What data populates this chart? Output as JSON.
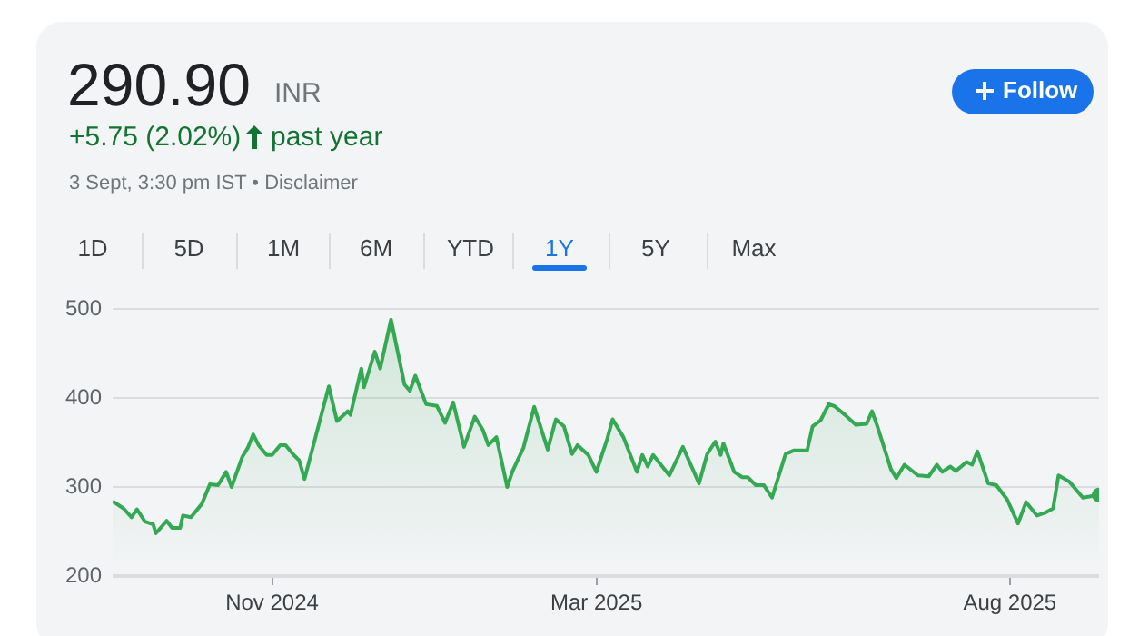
{
  "chart_data": {
    "type": "area",
    "title": "290.90",
    "annotations": [
      "INR",
      "+5.75 (2.02%)",
      "past year",
      "3 Sept, 3:30 pm IST • Disclaimer",
      "Follow",
      "1D",
      "5D",
      "1M",
      "6M",
      "YTD",
      "1Y",
      "5Y",
      "Max"
    ],
    "x": [
      "2024-09-03",
      "2024-09-07",
      "2024-09-10",
      "2024-09-12",
      "2024-09-15",
      "2024-09-18",
      "2024-09-19",
      "2024-09-23",
      "2024-09-25",
      "2024-09-28",
      "2024-09-29",
      "2024-10-02",
      "2024-10-06",
      "2024-10-09",
      "2024-10-12",
      "2024-10-15",
      "2024-10-17",
      "2024-10-21",
      "2024-10-23",
      "2024-10-25",
      "2024-10-27",
      "2024-10-30",
      "2024-11-01",
      "2024-11-04",
      "2024-11-06",
      "2024-11-09",
      "2024-11-11",
      "2024-11-13",
      "2024-11-22",
      "2024-11-25",
      "2024-11-29",
      "2024-11-30",
      "2024-12-04",
      "2024-12-05",
      "2024-12-09",
      "2024-12-11",
      "2024-12-15",
      "2024-12-20",
      "2024-12-22",
      "2024-12-24",
      "2024-12-28",
      "2025-01-01",
      "2025-01-04",
      "2025-01-07",
      "2025-01-11",
      "2025-01-15",
      "2025-01-18",
      "2025-01-20",
      "2025-01-23",
      "2025-01-27",
      "2025-01-29",
      "2025-02-02",
      "2025-02-06",
      "2025-02-11",
      "2025-02-14",
      "2025-02-17",
      "2025-02-20",
      "2025-02-22",
      "2025-02-26",
      "2025-03-01",
      "2025-03-05",
      "2025-03-07",
      "2025-03-11",
      "2025-03-16",
      "2025-03-18",
      "2025-03-20",
      "2025-03-22",
      "2025-03-28",
      "2025-04-02",
      "2025-04-08",
      "2025-04-11",
      "2025-04-14",
      "2025-04-16",
      "2025-04-17",
      "2025-04-21",
      "2025-04-24",
      "2025-04-26",
      "2025-04-29",
      "2025-05-02",
      "2025-05-05",
      "2025-05-10",
      "2025-05-13",
      "2025-05-18",
      "2025-05-20",
      "2025-05-23",
      "2025-05-26",
      "2025-05-28",
      "2025-06-01",
      "2025-06-05",
      "2025-06-09",
      "2025-06-11",
      "2025-06-13",
      "2025-06-18",
      "2025-06-20",
      "2025-06-23",
      "2025-06-28",
      "2025-07-02",
      "2025-07-05",
      "2025-07-07",
      "2025-07-10",
      "2025-07-12",
      "2025-07-16",
      "2025-07-18",
      "2025-07-20",
      "2025-07-24",
      "2025-07-27",
      "2025-07-31",
      "2025-08-04",
      "2025-08-07",
      "2025-08-11",
      "2025-08-14",
      "2025-08-17",
      "2025-08-19",
      "2025-08-23",
      "2025-08-28",
      "2025-09-03"
    ],
    "series": [
      {
        "color": "#34a853",
        "values": [
          284,
          276,
          266,
          275,
          261,
          258,
          248,
          262,
          254,
          254,
          268,
          266,
          281,
          303,
          302,
          317,
          300,
          334,
          344,
          359,
          347,
          336,
          336,
          347,
          347,
          336,
          330,
          309,
          413,
          374,
          385,
          381,
          433,
          412,
          452,
          433,
          488,
          415,
          408,
          425,
          393,
          391,
          372,
          395,
          345,
          379,
          364,
          347,
          356,
          300,
          318,
          344,
          390,
          342,
          376,
          368,
          337,
          347,
          336,
          317,
          354,
          376,
          356,
          317,
          336,
          323,
          336,
          313,
          345,
          304,
          337,
          351,
          336,
          349,
          317,
          311,
          311,
          302,
          302,
          288,
          337,
          341,
          341,
          368,
          375,
          393,
          391,
          381,
          370,
          371,
          385,
          368,
          320,
          310,
          325,
          313,
          312,
          325,
          317,
          323,
          318,
          328,
          325,
          340,
          304,
          302,
          286,
          259,
          283,
          268,
          271,
          276,
          313,
          306,
          288,
          291
        ]
      }
    ],
    "xlim": [
      "2024-09-03",
      "2025-09-03"
    ],
    "xticks": [
      {
        "value": "2024-11-01",
        "label": "Nov 2024"
      },
      {
        "value": "2025-03-01",
        "label": "Mar 2025"
      },
      {
        "value": "2025-08-01",
        "label": "Aug 2025"
      }
    ],
    "ylim": [
      200,
      500
    ],
    "yticks": [
      200,
      300,
      400,
      500
    ],
    "grid": "y"
  }
}
